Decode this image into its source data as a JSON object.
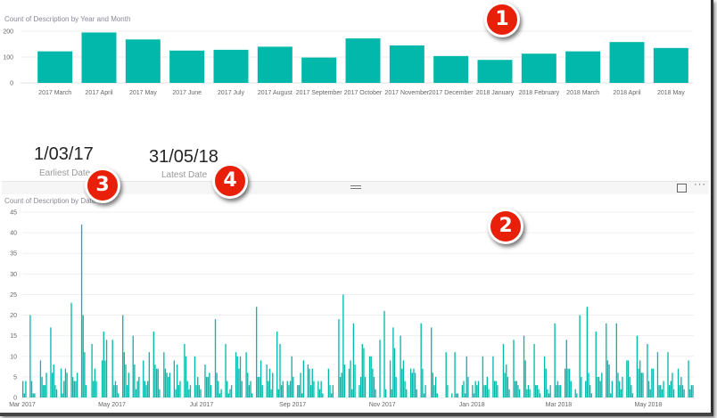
{
  "annotations": [
    "1",
    "2",
    "3",
    "4"
  ],
  "cards": [
    {
      "value": "1/03/17",
      "label": "Earliest Date"
    },
    {
      "value": "31/05/18",
      "label": "Latest Date"
    }
  ],
  "visual_header": {
    "focus_icon": "focus-mode-icon",
    "more_icon": "more-options-icon",
    "drag_icon": "drag-handle-icon"
  },
  "colors": {
    "bar": "#01B8AA",
    "badge": "#E8200A"
  },
  "chart_data": [
    {
      "type": "bar",
      "title": "Count of Description by Year and Month",
      "categories": [
        "2017 March",
        "2017 April",
        "2017 May",
        "2017 June",
        "2017 July",
        "2017 August",
        "2017 September",
        "2017 October",
        "2017 November",
        "2017 December",
        "2018 January",
        "2018 February",
        "2018 March",
        "2018 April",
        "2018 May"
      ],
      "values": [
        122,
        195,
        168,
        125,
        128,
        140,
        98,
        172,
        145,
        104,
        89,
        113,
        122,
        158,
        135
      ],
      "yticks": [
        0,
        100,
        200
      ],
      "ylim": [
        0,
        200
      ],
      "grid": true
    },
    {
      "type": "bar",
      "title": "Count of Description by Date",
      "xticks": [
        "Mar 2017",
        "May 2017",
        "Jul 2017",
        "Sep 2017",
        "Nov 2017",
        "Jan 2018",
        "Mar 2018",
        "May 2018"
      ],
      "yticks": [
        0,
        5,
        10,
        15,
        20,
        25,
        30,
        35,
        40,
        45
      ],
      "ylim": [
        0,
        45
      ],
      "grid": true,
      "date_range": [
        "1/03/17",
        "31/05/18"
      ],
      "values": [
        4,
        1,
        4,
        0,
        0,
        20,
        4,
        1,
        1,
        0,
        0,
        0,
        9,
        5,
        3,
        3,
        6,
        0,
        0,
        17,
        6,
        8,
        3,
        2,
        0,
        0,
        7,
        1,
        4,
        7,
        6,
        0,
        0,
        23,
        5,
        4,
        4,
        6,
        0,
        0,
        42,
        20,
        11,
        3,
        0,
        0,
        0,
        13,
        4,
        7,
        4,
        0,
        0,
        0,
        9,
        16,
        9,
        14,
        0,
        0,
        0,
        14,
        3,
        4,
        3,
        1,
        0,
        0,
        20,
        11,
        8,
        3,
        6,
        0,
        0,
        15,
        8,
        2,
        4,
        5,
        0,
        0,
        9,
        4,
        3,
        4,
        11,
        0,
        0,
        16,
        8,
        7,
        7,
        2,
        0,
        0,
        11,
        7,
        6,
        5,
        6,
        0,
        0,
        9,
        2,
        8,
        3,
        4,
        0,
        0,
        13,
        10,
        4,
        2,
        3,
        0,
        0,
        10,
        3,
        5,
        3,
        2,
        0,
        0,
        8,
        5,
        5,
        6,
        3,
        0,
        0,
        19,
        6,
        4,
        1,
        2,
        0,
        0,
        13,
        4,
        1,
        2,
        3,
        0,
        0,
        11,
        10,
        7,
        10,
        4,
        0,
        0,
        11,
        6,
        3,
        4,
        1,
        0,
        0,
        22,
        5,
        5,
        9,
        3,
        0,
        0,
        8,
        4,
        7,
        2,
        6,
        0,
        0,
        16,
        2,
        13,
        3,
        4,
        0,
        0,
        4,
        3,
        4,
        10,
        5,
        0,
        0,
        3,
        3,
        6,
        1,
        9,
        0,
        0,
        8,
        7,
        3,
        7,
        4,
        0,
        0,
        4,
        2,
        4,
        1,
        0,
        0,
        0,
        7,
        3,
        1,
        3,
        0,
        0,
        0,
        19,
        5,
        6,
        25,
        8,
        0,
        0,
        7,
        9,
        2,
        18,
        8,
        0,
        0,
        3,
        5,
        13,
        12,
        5,
        0,
        0,
        10,
        10,
        7,
        5,
        2,
        0,
        0,
        14,
        0,
        0,
        21,
        2,
        0,
        0,
        9,
        2,
        17,
        12,
        5,
        0,
        0,
        15,
        7,
        9,
        4,
        2,
        0,
        0,
        7,
        6,
        7,
        6,
        2,
        0,
        0,
        18,
        7,
        1,
        3,
        0,
        0,
        0,
        17,
        6,
        3,
        5,
        1,
        0,
        0,
        0,
        0,
        0,
        11,
        3,
        0,
        0,
        1,
        0,
        11,
        1,
        1,
        0,
        0,
        3,
        4,
        1,
        10,
        5,
        0,
        0,
        3,
        1,
        4,
        3,
        4,
        0,
        0,
        10,
        3,
        3,
        5,
        2,
        0,
        0,
        10,
        4,
        4,
        3,
        0,
        0,
        0,
        13,
        6,
        8,
        5,
        2,
        0,
        0,
        14,
        4,
        4,
        3,
        2,
        0,
        0,
        15,
        9,
        2,
        3,
        2,
        0,
        0,
        13,
        3,
        3,
        2,
        1,
        0,
        0,
        10,
        7,
        2,
        1,
        3,
        0,
        0,
        18,
        3,
        4,
        3,
        3,
        0,
        0,
        7,
        14,
        7,
        7,
        4,
        0,
        0,
        2,
        1,
        0,
        20,
        5,
        0,
        0,
        4,
        22,
        6,
        3,
        1,
        0,
        0,
        16,
        5,
        5,
        4,
        6,
        0,
        0,
        18,
        9,
        8,
        1,
        4,
        0,
        0,
        18,
        6,
        4,
        2,
        5,
        0,
        0,
        9,
        9,
        5,
        3,
        1,
        0,
        0,
        15,
        7,
        9,
        6,
        6,
        0,
        0,
        13,
        4,
        2,
        7,
        7,
        0,
        0,
        11,
        3,
        3,
        2,
        4,
        0,
        0,
        11,
        3,
        4,
        6,
        2,
        0,
        0,
        7,
        3,
        5,
        3,
        2,
        0,
        0,
        9,
        2,
        3,
        3
      ]
    }
  ]
}
